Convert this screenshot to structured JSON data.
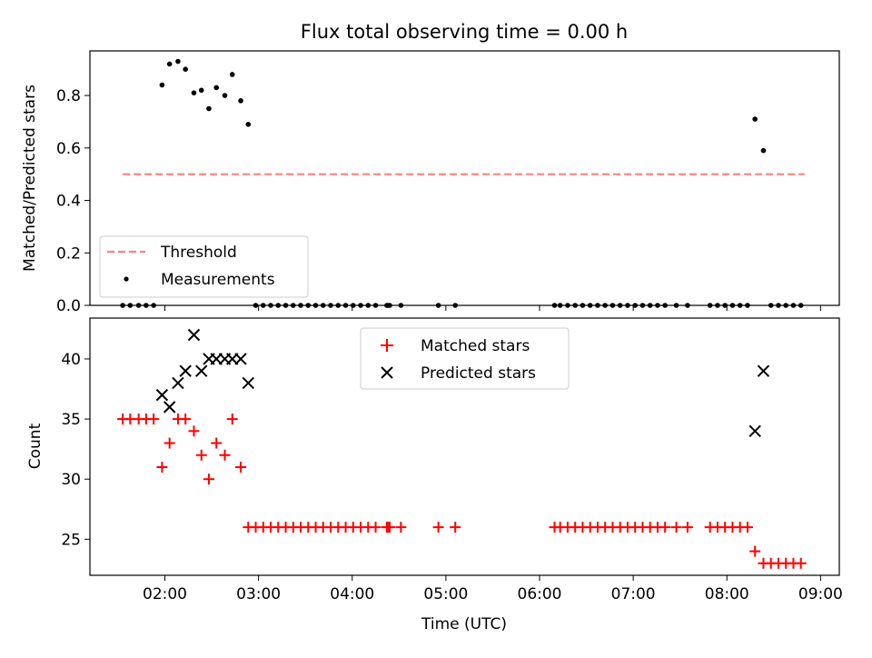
{
  "figure": {
    "title": "Flux total observing time = 0.00 h"
  },
  "chart_data": [
    {
      "type": "scatter",
      "ylabel": "Matched/Predicted stars",
      "xlim": [
        1.2,
        9.2
      ],
      "ylim": [
        0,
        0.97
      ],
      "yticks": [
        0.0,
        0.2,
        0.4,
        0.6,
        0.8
      ],
      "ytick_labels": [
        "0.0",
        "0.2",
        "0.4",
        "0.6",
        "0.8"
      ],
      "grid": false,
      "legend_position": "lower-left",
      "legend": [
        "Threshold",
        "Measurements"
      ],
      "threshold": {
        "name": "Threshold",
        "color": "#ff8080",
        "style": "dashed",
        "y": 0.5,
        "x_range": [
          1.55,
          8.83
        ]
      },
      "series": [
        {
          "name": "Measurements",
          "color": "#000000",
          "marker": "dot",
          "x": [
            1.55,
            1.63,
            1.72,
            1.8,
            1.88,
            1.97,
            2.05,
            2.14,
            2.22,
            2.31,
            2.39,
            2.47,
            2.55,
            2.64,
            2.72,
            2.81,
            2.89,
            2.97,
            3.05,
            3.13,
            3.21,
            3.29,
            3.37,
            3.45,
            3.53,
            3.61,
            3.69,
            3.77,
            3.85,
            3.93,
            4.01,
            4.09,
            4.17,
            4.25,
            4.37,
            4.38,
            4.4,
            4.52,
            4.92,
            5.1,
            6.16,
            6.22,
            6.3,
            6.38,
            6.46,
            6.54,
            6.62,
            6.7,
            6.78,
            6.86,
            6.94,
            7.02,
            7.1,
            7.18,
            7.26,
            7.34,
            7.46,
            7.58,
            7.82,
            7.9,
            7.98,
            8.06,
            8.14,
            8.22,
            8.3,
            8.39,
            8.47,
            8.55,
            8.63,
            8.71,
            8.79
          ],
          "y": [
            0,
            0,
            0,
            0,
            0,
            0.84,
            0.92,
            0.93,
            0.9,
            0.81,
            0.82,
            0.75,
            0.83,
            0.8,
            0.88,
            0.78,
            0.69,
            0,
            0,
            0,
            0,
            0,
            0,
            0,
            0,
            0,
            0,
            0,
            0,
            0,
            0,
            0,
            0,
            0,
            0,
            0,
            0,
            0,
            0,
            0,
            0,
            0,
            0,
            0,
            0,
            0,
            0,
            0,
            0,
            0,
            0,
            0,
            0,
            0,
            0,
            0,
            0,
            0,
            0,
            0,
            0,
            0,
            0,
            0,
            0.71,
            0.59,
            0,
            0,
            0,
            0,
            0
          ]
        }
      ]
    },
    {
      "type": "scatter",
      "xlabel": "Time (UTC)",
      "ylabel": "Count",
      "xlim": [
        1.2,
        9.2
      ],
      "ylim": [
        22,
        43.4
      ],
      "xticks": [
        2,
        3,
        4,
        5,
        6,
        7,
        8,
        9
      ],
      "xtick_labels": [
        "02:00",
        "03:00",
        "04:00",
        "05:00",
        "06:00",
        "07:00",
        "08:00",
        "09:00"
      ],
      "yticks": [
        25,
        30,
        35,
        40
      ],
      "ytick_labels": [
        "25",
        "30",
        "35",
        "40"
      ],
      "grid": false,
      "legend_position": "top-center",
      "legend": [
        "Matched stars",
        "Predicted stars"
      ],
      "series": [
        {
          "name": "Matched stars",
          "color": "#ff0000",
          "marker": "plus",
          "x": [
            1.55,
            1.63,
            1.72,
            1.8,
            1.88,
            1.97,
            2.05,
            2.14,
            2.22,
            2.31,
            2.39,
            2.47,
            2.55,
            2.64,
            2.72,
            2.81,
            2.89,
            2.97,
            3.05,
            3.13,
            3.21,
            3.29,
            3.37,
            3.45,
            3.53,
            3.61,
            3.69,
            3.77,
            3.85,
            3.93,
            4.01,
            4.09,
            4.17,
            4.25,
            4.37,
            4.38,
            4.4,
            4.52,
            4.92,
            5.1,
            6.16,
            6.22,
            6.3,
            6.38,
            6.46,
            6.54,
            6.62,
            6.7,
            6.78,
            6.86,
            6.94,
            7.02,
            7.1,
            7.18,
            7.26,
            7.34,
            7.46,
            7.58,
            7.82,
            7.9,
            7.98,
            8.06,
            8.14,
            8.22,
            8.3,
            8.39,
            8.47,
            8.55,
            8.63,
            8.71,
            8.79
          ],
          "y": [
            35,
            35,
            35,
            35,
            35,
            31,
            33,
            35,
            35,
            34,
            32,
            30,
            33,
            32,
            35,
            31,
            26,
            26,
            26,
            26,
            26,
            26,
            26,
            26,
            26,
            26,
            26,
            26,
            26,
            26,
            26,
            26,
            26,
            26,
            26,
            26,
            26,
            26,
            26,
            26,
            26,
            26,
            26,
            26,
            26,
            26,
            26,
            26,
            26,
            26,
            26,
            26,
            26,
            26,
            26,
            26,
            26,
            26,
            26,
            26,
            26,
            26,
            26,
            26,
            24,
            23,
            23,
            23,
            23,
            23,
            23
          ]
        },
        {
          "name": "Predicted stars",
          "color": "#000000",
          "marker": "x",
          "x": [
            1.97,
            2.05,
            2.14,
            2.22,
            2.31,
            2.39,
            2.47,
            2.55,
            2.64,
            2.72,
            2.81,
            2.89,
            8.3,
            8.39
          ],
          "y": [
            37,
            36,
            38,
            39,
            42,
            39,
            40,
            40,
            40,
            40,
            40,
            38,
            34,
            39
          ]
        }
      ]
    }
  ]
}
